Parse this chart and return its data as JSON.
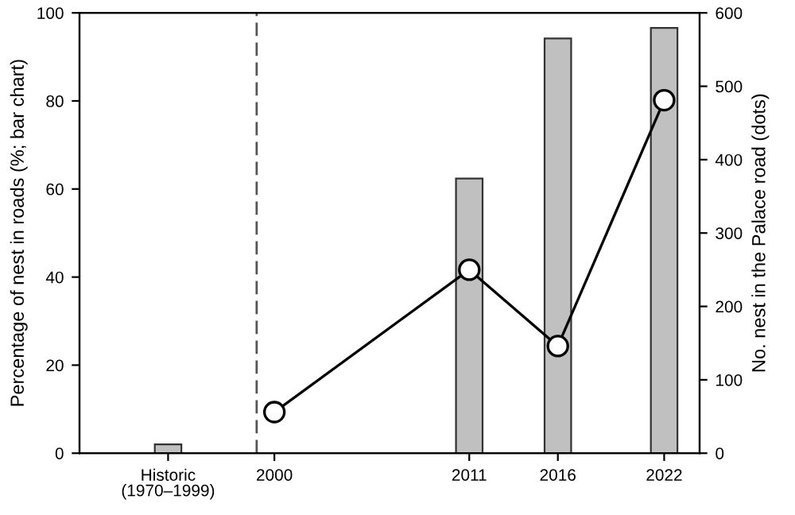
{
  "chart_data": {
    "type": "bar",
    "xlabel": null,
    "ylabel": "Percentage of nest in roads (%; bar chart)",
    "y2label": "No. nest in the Palace road (dots)",
    "xlim": [
      1989,
      2024
    ],
    "xticks": [
      {
        "value": 1994,
        "label": "Historic\n(1970–1999)"
      },
      2000,
      2011,
      2016,
      2022
    ],
    "ylim": [
      0,
      100
    ],
    "yticks": [
      0,
      20,
      40,
      60,
      80,
      100
    ],
    "y2lim": [
      0,
      600
    ],
    "y2ticks": [
      0,
      100,
      200,
      300,
      400,
      500,
      600
    ],
    "series": [
      {
        "color": "#c0c0c0",
        "x": [
          1994,
          2011,
          2016,
          2022
        ],
        "values": [
          2,
          62.4,
          94.2,
          96.6
        ]
      },
      {
        "type": "line",
        "axis": "y2",
        "color": "#000000",
        "marker": "circle",
        "line_style": "solid",
        "x": [
          2000,
          2011,
          2016,
          2022
        ],
        "values": [
          56,
          250,
          146,
          481
        ]
      }
    ],
    "ref_lines": [
      {
        "axis": "x",
        "value": 1999,
        "label": null,
        "line_style": "dashed",
        "color": "#555555"
      }
    ],
    "grid": false,
    "legend": false
  }
}
